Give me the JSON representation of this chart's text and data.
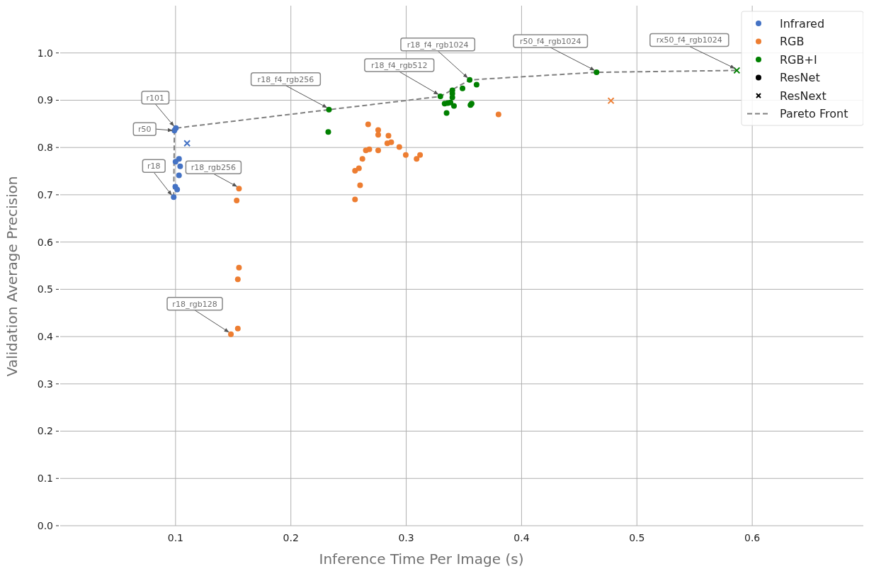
{
  "chart_data": {
    "type": "scatter",
    "xlabel": "Inference Time Per Image (s)",
    "ylabel": "Validation Average Precision",
    "xlim": [
      0,
      0.7
    ],
    "ylim": [
      0,
      1.1
    ],
    "xticks": [
      0.1,
      0.2,
      0.3,
      0.4,
      0.5,
      0.6
    ],
    "yticks": [
      {
        "value": 0,
        "label": "0.0"
      },
      0.1,
      0.2,
      0.3,
      0.4,
      0.5,
      0.6,
      0.7,
      0.8,
      0.9,
      {
        "value": 1,
        "label": "1.0"
      }
    ],
    "grid": true,
    "legend": "top right",
    "marker": "circle",
    "series": [
      {
        "name": "Infrared",
        "color": "#4472c4",
        "x": [
          0.1003,
          0.099,
          0.103,
          0.1,
          0.104,
          0.103,
          0.0998,
          0.1014,
          0.0984
        ],
        "values": [
          0.841,
          0.836,
          0.776,
          0.77,
          0.76,
          0.741,
          0.717,
          0.711,
          0.695
        ]
      },
      {
        "name": "RGB",
        "color": "#ed7d31",
        "x": [
          0.155,
          0.153,
          0.155,
          0.154,
          0.154,
          0.148,
          0.267,
          0.2757,
          0.2757,
          0.2846,
          0.2836,
          0.287,
          0.294,
          0.265,
          0.268,
          0.2757,
          0.2996,
          0.309,
          0.312,
          0.262,
          0.2556,
          0.259,
          0.26,
          0.2556,
          0.38
        ],
        "values": [
          0.713,
          0.688,
          0.546,
          0.521,
          0.417,
          0.405,
          0.849,
          0.837,
          0.827,
          0.825,
          0.809,
          0.811,
          0.801,
          0.794,
          0.796,
          0.794,
          0.784,
          0.776,
          0.784,
          0.776,
          0.751,
          0.756,
          0.72,
          0.69,
          0.87
        ]
      },
      {
        "name": "RGB+I",
        "color": "#008000",
        "x": [
          0.233,
          0.2324,
          0.3296,
          0.355,
          0.361,
          0.3488,
          0.34,
          0.34,
          0.34,
          0.3333,
          0.3384,
          0.3414,
          0.336,
          0.3567,
          0.3557,
          0.335,
          0.465
        ],
        "values": [
          0.88,
          0.833,
          0.908,
          0.943,
          0.933,
          0.925,
          0.921,
          0.914,
          0.906,
          0.893,
          0.895,
          0.888,
          0.894,
          0.893,
          0.89,
          0.873,
          0.959
        ]
      },
      {
        "marker": "cross",
        "x": [
          0.11,
          0.4775,
          0.5866
        ],
        "values": [
          0.809,
          0.899,
          0.963
        ],
        "colors": [
          "#4472c4",
          "#ed7d31",
          "#008000"
        ]
      },
      {
        "name": "Pareto Front",
        "type": "line",
        "color": "#808080",
        "line_style": "dashed",
        "marker": "none",
        "x": [
          0.0984,
          0.099,
          0.1003,
          0.233,
          0.3296,
          0.355,
          0.465,
          0.5866
        ],
        "values": [
          0.695,
          0.836,
          0.841,
          0.88,
          0.908,
          0.943,
          0.959,
          0.963
        ]
      }
    ],
    "annotations": [
      {
        "text": "r101",
        "x": 0.1003,
        "y": 0.841
      },
      {
        "text": "r50",
        "x": 0.099,
        "y": 0.836
      },
      {
        "text": "r18",
        "x": 0.0984,
        "y": 0.695
      },
      {
        "text": "r18_rgb256",
        "x": 0.155,
        "y": 0.713
      },
      {
        "text": "r18_rgb128",
        "x": 0.148,
        "y": 0.405
      },
      {
        "text": "r18_f4_rgb256",
        "x": 0.233,
        "y": 0.88
      },
      {
        "text": "r18_f4_rgb512",
        "x": 0.3296,
        "y": 0.908
      },
      {
        "text": "r18_f4_rgb1024",
        "x": 0.355,
        "y": 0.943
      },
      {
        "text": "r50_f4_rgb1024",
        "x": 0.465,
        "y": 0.959
      },
      {
        "text": "rx50_f4_rgb1024",
        "x": 0.5866,
        "y": 0.963
      },
      "ResNet",
      "ResNext"
    ]
  }
}
